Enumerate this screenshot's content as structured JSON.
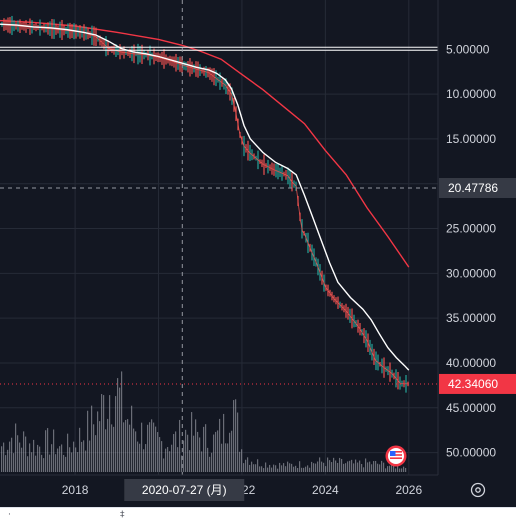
{
  "chart_data": {
    "type": "line",
    "title": "",
    "y_axis": {
      "inverted": true,
      "ylim": [
        -0.5,
        52.5
      ],
      "tick_labels": [
        "5.00000",
        "10.00000",
        "15.00000",
        "20.00000",
        "25.00000",
        "30.00000",
        "35.00000",
        "40.00000",
        "45.00000",
        "50.00000"
      ],
      "ticks": [
        5,
        10,
        15,
        20,
        25,
        30,
        35,
        40,
        45,
        50
      ]
    },
    "x_axis": {
      "tick_labels": [
        "2018",
        "2020",
        "2022",
        "2024",
        "2026"
      ],
      "ticks": [
        2018,
        2020,
        2022,
        2024,
        2026
      ],
      "xlim": [
        2016.2,
        2026.7
      ]
    },
    "grid": true,
    "crosshair": {
      "x_label": "2020-07-27 (月)",
      "x": 2020.57,
      "y_label": "20.47786",
      "y": 20.47786
    },
    "last_price": {
      "label": "42.34060",
      "value": 42.3406,
      "color": "#f23645"
    },
    "horizontal_line": {
      "value": 5.0
    },
    "series": [
      {
        "kind": "price",
        "x": [
          2016.2,
          2016.6,
          2017.0,
          2017.4,
          2017.8,
          2018.2,
          2018.5,
          2018.8,
          2019.1,
          2019.4,
          2019.7,
          2020.0,
          2020.3,
          2020.6,
          2020.9,
          2021.2,
          2021.4,
          2021.6,
          2021.75,
          2021.85,
          2021.95,
          2022.05,
          2022.2,
          2022.5,
          2022.8,
          2023.1,
          2023.2,
          2023.3,
          2023.4,
          2023.45,
          2023.5,
          2023.6,
          2023.8,
          2024.0,
          2024.2,
          2024.5,
          2024.8,
          2025.0,
          2025.2,
          2025.4,
          2025.6,
          2025.8,
          2026.0
        ],
        "values": [
          2.2,
          2.4,
          2.5,
          2.7,
          2.9,
          3.1,
          3.6,
          4.9,
          5.3,
          5.5,
          5.6,
          5.9,
          6.3,
          6.8,
          7.2,
          7.6,
          8.3,
          9.0,
          10.0,
          12.0,
          14.5,
          15.8,
          16.6,
          17.8,
          18.5,
          19.1,
          19.8,
          20.3,
          24.0,
          25.3,
          25.6,
          26.8,
          29.0,
          31.5,
          32.8,
          34.2,
          36.0,
          37.5,
          39.7,
          40.5,
          41.2,
          42.3,
          42.34
        ]
      },
      {
        "kind": "moving-average-short",
        "color": "#ffffff",
        "x": [
          2016.2,
          2016.6,
          2017.0,
          2017.4,
          2017.8,
          2018.2,
          2018.5,
          2018.8,
          2019.1,
          2019.4,
          2019.7,
          2020.0,
          2020.3,
          2020.6,
          2020.9,
          2021.2,
          2021.4,
          2021.6,
          2021.75,
          2021.9,
          2022.05,
          2022.2,
          2022.5,
          2022.8,
          2023.1,
          2023.3,
          2023.5,
          2023.7,
          2023.9,
          2024.1,
          2024.3,
          2024.6,
          2024.9,
          2025.1,
          2025.3,
          2025.5,
          2025.7,
          2025.9,
          2026.0
        ],
        "values": [
          2.2,
          2.3,
          2.5,
          2.6,
          2.8,
          3.1,
          3.4,
          4.1,
          4.9,
          5.3,
          5.5,
          5.8,
          6.2,
          6.6,
          7.0,
          7.3,
          7.7,
          8.4,
          9.4,
          11.2,
          13.5,
          15.0,
          16.5,
          17.6,
          18.3,
          19.0,
          21.3,
          23.8,
          26.3,
          28.8,
          31.0,
          32.7,
          34.0,
          35.2,
          36.8,
          38.3,
          39.4,
          40.3,
          40.8
        ]
      },
      {
        "kind": "moving-average-long",
        "color": "#f23645",
        "x": [
          2016.2,
          2017.0,
          2018.0,
          2019.0,
          2020.0,
          2020.6,
          2021.0,
          2021.5,
          2022.0,
          2022.5,
          2023.0,
          2023.5,
          2024.0,
          2024.5,
          2025.0,
          2025.5,
          2026.0
        ],
        "values": [
          1.8,
          2.0,
          2.4,
          3.1,
          3.9,
          4.6,
          5.2,
          6.1,
          7.8,
          9.5,
          11.4,
          13.3,
          16.3,
          19.0,
          22.7,
          25.9,
          29.3
        ]
      },
      {
        "kind": "volume",
        "color": "#d1d4dc",
        "x": [
          2016.2,
          2016.5,
          2016.8,
          2017.1,
          2017.4,
          2017.7,
          2018.0,
          2018.3,
          2018.6,
          2018.9,
          2019.2,
          2019.5,
          2019.8,
          2020.1,
          2020.4,
          2020.7,
          2021.0,
          2021.3,
          2021.6,
          2021.75,
          2021.8,
          2022.0,
          2022.3,
          2022.6,
          2022.9,
          2023.2,
          2023.5,
          2023.8,
          2024.1,
          2024.4,
          2024.7,
          2025.0,
          2025.3,
          2025.6,
          2025.9
        ],
        "values": [
          0.25,
          0.35,
          0.3,
          0.25,
          0.3,
          0.22,
          0.3,
          0.42,
          0.58,
          0.9,
          0.55,
          0.4,
          0.35,
          0.28,
          0.32,
          0.4,
          0.35,
          0.3,
          0.45,
          0.9,
          0.6,
          0.18,
          0.1,
          0.08,
          0.07,
          0.07,
          0.08,
          0.1,
          0.1,
          0.09,
          0.08,
          0.09,
          0.08,
          0.06,
          0.05
        ]
      }
    ]
  },
  "toolbar": {
    "settings_icon": "settings-icon",
    "flag_icon": "us-flag-icon"
  },
  "bottom_strip": {
    "mark_left": "·",
    "mark_right": "‡"
  }
}
